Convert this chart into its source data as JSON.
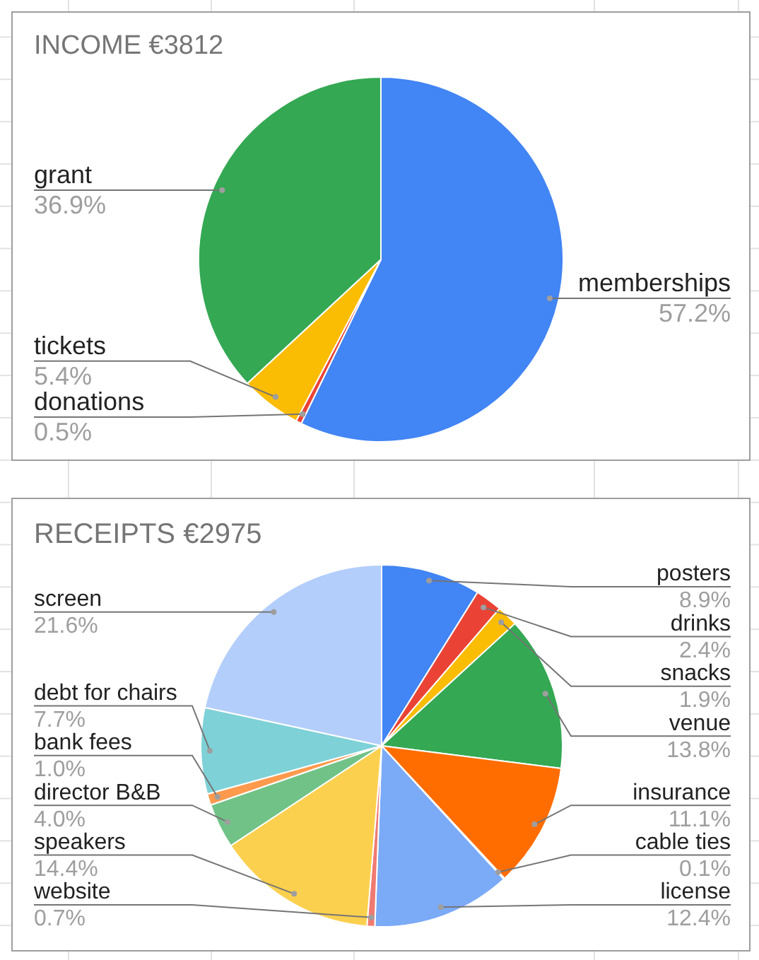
{
  "chart_data": [
    {
      "type": "pie",
      "title": "INCOME €3812",
      "categories": [
        "memberships",
        "donations",
        "tickets",
        "grant"
      ],
      "values": [
        57.2,
        0.5,
        5.4,
        36.9
      ],
      "colors": [
        "#4285f4",
        "#ea4335",
        "#fbbc04",
        "#34a853"
      ],
      "value_labels": [
        "57.2%",
        "0.5%",
        "5.4%",
        "36.9%"
      ]
    },
    {
      "type": "pie",
      "title": "RECEIPTS €2975",
      "categories": [
        "posters",
        "drinks",
        "snacks",
        "venue",
        "insurance",
        "cable ties",
        "license",
        "website",
        "speakers",
        "director B&B",
        "bank fees",
        "debt for chairs",
        "screen"
      ],
      "values": [
        8.9,
        2.4,
        1.9,
        13.8,
        11.1,
        0.1,
        12.4,
        0.7,
        14.4,
        4.0,
        1.0,
        7.7,
        21.6
      ],
      "colors": [
        "#4285f4",
        "#ea4335",
        "#fbbc04",
        "#34a853",
        "#ff6d01",
        "#46bdc6",
        "#7baaf7",
        "#f07b72",
        "#fcd04f",
        "#71c287",
        "#ff994d",
        "#7ed1d7",
        "#b3cefb"
      ],
      "value_labels": [
        "8.9%",
        "2.4%",
        "1.9%",
        "13.8%",
        "11.1%",
        "0.1%",
        "12.4%",
        "0.7%",
        "14.4%",
        "4.0%",
        "1.0%",
        "7.7%",
        "21.6%"
      ]
    }
  ]
}
